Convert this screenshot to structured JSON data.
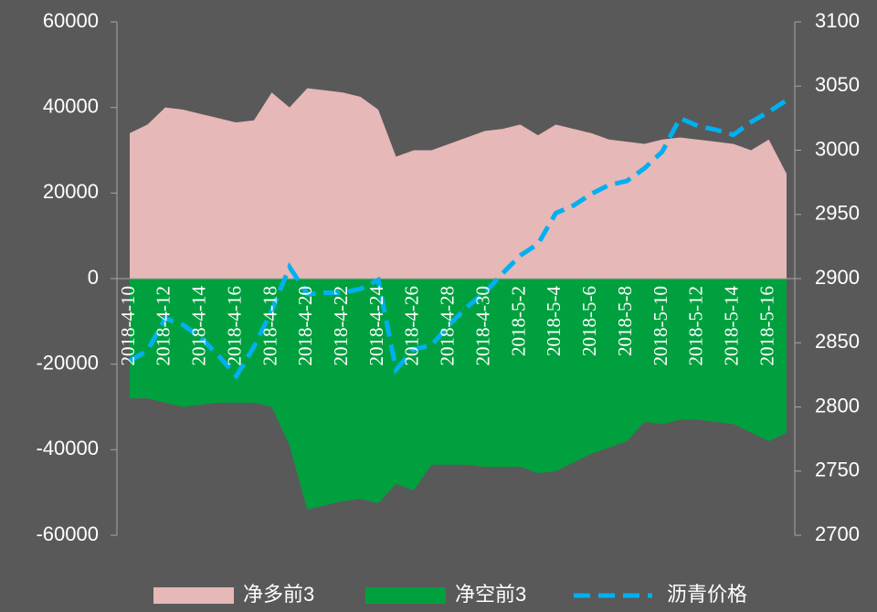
{
  "chart_data": {
    "type": "area",
    "categories": [
      "2018-4-10",
      null,
      "2018-4-12",
      null,
      "2018-4-14",
      null,
      "2018-4-16",
      null,
      "2018-4-18",
      null,
      "2018-4-20",
      null,
      "2018-4-22",
      null,
      "2018-4-24",
      null,
      "2018-4-26",
      null,
      "2018-4-28",
      null,
      "2018-4-30",
      null,
      "2018-5-2",
      null,
      "2018-5-4",
      null,
      "2018-5-6",
      null,
      "2018-5-8",
      null,
      "2018-5-10",
      null,
      "2018-5-12",
      null,
      "2018-5-14",
      null,
      "2018-5-16",
      null
    ],
    "series": [
      {
        "name": "净多前3",
        "color": "#e6b8b7",
        "axis": "y",
        "values": [
          34000,
          36000,
          40000,
          39500,
          38500,
          37500,
          36500,
          37000,
          43500,
          40000,
          44500,
          44000,
          43500,
          42500,
          39500,
          28500,
          30000,
          30000,
          31500,
          33000,
          34500,
          35000,
          36000,
          33500,
          36000,
          35000,
          34000,
          32500,
          32000,
          31500,
          32500,
          33000,
          32500,
          32000,
          31500,
          30000,
          32500,
          24500
        ]
      },
      {
        "name": "净空前3",
        "color": "#00a03e",
        "axis": "y",
        "values": [
          -28000,
          -28000,
          -29000,
          -30000,
          -29500,
          -29000,
          -29000,
          -29000,
          -30000,
          -39000,
          -54000,
          -53000,
          -52000,
          -51500,
          -52500,
          -48000,
          -49500,
          -43500,
          -43500,
          -43500,
          -44000,
          -44000,
          -44000,
          -45500,
          -45000,
          -43000,
          -41000,
          -39500,
          -38000,
          -33500,
          -34000,
          -33000,
          -33000,
          -33500,
          -34000,
          -36000,
          -38000,
          -36000
        ]
      },
      {
        "name": "沥青价格",
        "color": "#00b0f0",
        "axis": "y2",
        "dashed": true,
        "values": [
          2836,
          2844,
          2869,
          2864,
          2854,
          2840,
          2824,
          2847,
          2875,
          2909,
          2888,
          2889,
          2889,
          2892,
          2899,
          2829,
          2845,
          2848,
          2864,
          2878,
          2889,
          2904,
          2918,
          2927,
          2951,
          2957,
          2966,
          2973,
          2976,
          2986,
          2999,
          3025,
          3019,
          3016,
          3012,
          3022,
          3030,
          3039
        ]
      }
    ],
    "ylim": [
      -60000,
      60000
    ],
    "yticks": [
      -60000,
      -40000,
      -20000,
      0,
      20000,
      40000,
      60000
    ],
    "y2lim": [
      2700,
      3100
    ],
    "y2ticks": [
      2700,
      2750,
      2800,
      2850,
      2900,
      2950,
      3000,
      3050,
      3100
    ],
    "legend": "bottom"
  }
}
